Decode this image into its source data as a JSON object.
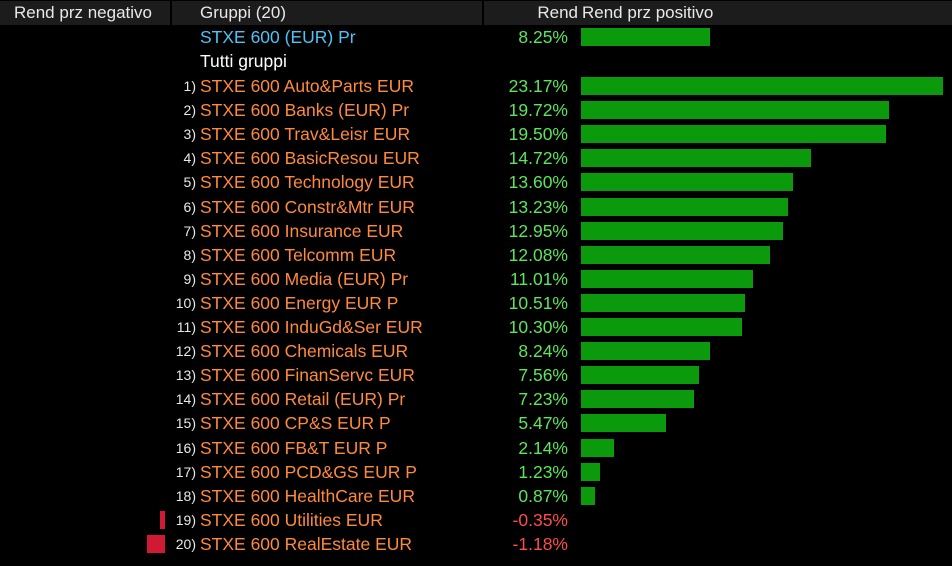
{
  "header": {
    "neg_label": "Rend prz negativo",
    "group_label": "Gruppi (20)",
    "value_label": "Rend",
    "pos_label": "Rend prz positivo"
  },
  "benchmark": {
    "name": "STXE 600 (EUR) Pr",
    "value_label": "8.25%",
    "value": 8.25
  },
  "section_label": "Tutti gruppi",
  "colors": {
    "positive_bar": "#0b9a0b",
    "negative_bar": "#d01a35",
    "positive_text": "#5ce65c",
    "negative_text": "#ff4d4d",
    "name_text": "#ff8a3d",
    "benchmark_text": "#4fc3f7"
  },
  "chart_data": {
    "type": "bar",
    "categories": [
      "STXE 600 Auto&Parts EUR",
      "STXE 600 Banks (EUR) Pr",
      "STXE 600 Trav&Leisr EUR",
      "STXE 600 BasicResou EUR",
      "STXE 600 Technology EUR",
      "STXE 600 Constr&Mtr EUR",
      "STXE 600 Insurance EUR",
      "STXE 600 Telcomm EUR",
      "STXE 600 Media (EUR) Pr",
      "STXE 600 Energy EUR P",
      "STXE 600 InduGd&Ser EUR",
      "STXE 600 Chemicals EUR",
      "STXE 600 FinanServc EUR",
      "STXE 600 Retail (EUR) Pr",
      "STXE 600 CP&S EUR P",
      "STXE 600 FB&T EUR P",
      "STXE 600 PCD&GS EUR P",
      "STXE 600 HealthCare EUR",
      "STXE 600 Utilities EUR",
      "STXE 600 RealEstate EUR"
    ],
    "ranks": [
      "1)",
      "2)",
      "3)",
      "4)",
      "5)",
      "6)",
      "7)",
      "8)",
      "9)",
      "10)",
      "11)",
      "12)",
      "13)",
      "14)",
      "15)",
      "16)",
      "17)",
      "18)",
      "19)",
      "20)"
    ],
    "values": [
      23.17,
      19.72,
      19.5,
      14.72,
      13.6,
      13.23,
      12.95,
      12.08,
      11.01,
      10.51,
      10.3,
      8.24,
      7.56,
      7.23,
      5.47,
      2.14,
      1.23,
      0.87,
      -0.35,
      -1.18
    ],
    "value_labels": [
      "23.17%",
      "19.72%",
      "19.50%",
      "14.72%",
      "13.60%",
      "13.23%",
      "12.95%",
      "12.08%",
      "11.01%",
      "10.51%",
      "10.30%",
      "8.24%",
      "7.56%",
      "7.23%",
      "5.47%",
      "2.14%",
      "1.23%",
      "0.87%",
      "-0.35%",
      "-1.18%"
    ]
  }
}
